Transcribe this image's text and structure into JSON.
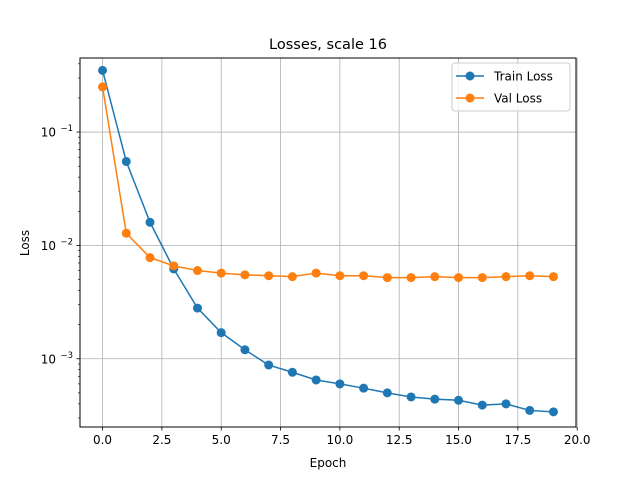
{
  "chart_data": {
    "type": "line",
    "title": "Losses, scale 16",
    "xlabel": "Epoch",
    "ylabel": "Loss",
    "xlim": [
      -0.95,
      19.95
    ],
    "ylim": [
      0.00025,
      0.45
    ],
    "yscale": "log",
    "grid": true,
    "legend_position": "top-right",
    "x": [
      0,
      1,
      2,
      3,
      4,
      5,
      6,
      7,
      8,
      9,
      10,
      11,
      12,
      13,
      14,
      15,
      16,
      17,
      18,
      19
    ],
    "x_ticks": [
      {
        "value": 0,
        "label": "0.0"
      },
      {
        "value": 2.5,
        "label": "2.5"
      },
      {
        "value": 5,
        "label": "5.0"
      },
      {
        "value": 7.5,
        "label": "7.5"
      },
      {
        "value": 10,
        "label": "10.0"
      },
      {
        "value": 12.5,
        "label": "12.5"
      },
      {
        "value": 15,
        "label": "15.0"
      },
      {
        "value": 17.5,
        "label": "17.5"
      },
      {
        "value": 20,
        "label": "20.0"
      }
    ],
    "y_ticks": [
      {
        "value": 0.001,
        "base": "10",
        "exp": "−3"
      },
      {
        "value": 0.01,
        "base": "10",
        "exp": "−2"
      },
      {
        "value": 0.1,
        "base": "10",
        "exp": "−1"
      }
    ],
    "series": [
      {
        "name": "Train Loss",
        "color": "#1f77b4",
        "values": [
          0.35,
          0.055,
          0.016,
          0.0062,
          0.0028,
          0.0017,
          0.0012,
          0.00088,
          0.00076,
          0.00065,
          0.0006,
          0.00055,
          0.0005,
          0.00046,
          0.00044,
          0.00043,
          0.00039,
          0.0004,
          0.00035,
          0.00034
        ]
      },
      {
        "name": "Val Loss",
        "color": "#ff7f0e",
        "values": [
          0.25,
          0.0128,
          0.0078,
          0.0066,
          0.006,
          0.0057,
          0.0055,
          0.0054,
          0.0053,
          0.0057,
          0.0054,
          0.0054,
          0.0052,
          0.0052,
          0.0053,
          0.0052,
          0.0052,
          0.0053,
          0.0054,
          0.0053
        ]
      }
    ]
  }
}
